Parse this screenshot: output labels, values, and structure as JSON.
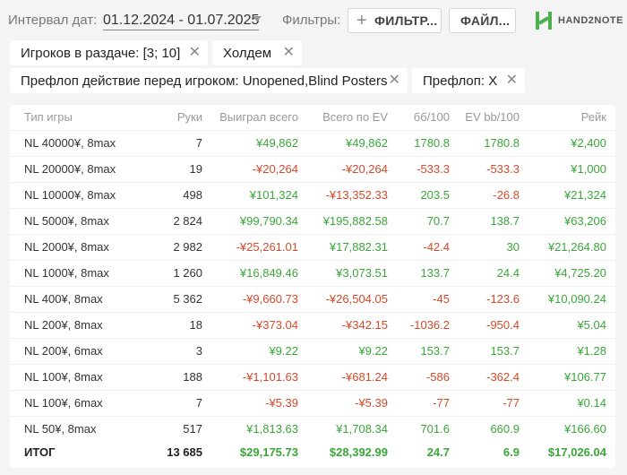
{
  "topbar": {
    "interval_label": "Интервал дат:",
    "interval_value": "01.12.2024 - 01.07.2025",
    "filters_label": "Фильтры:",
    "filter_button": "ФИЛЬТР...",
    "file_button": "ФАЙЛ...",
    "logo_text": "HAND2NOTE"
  },
  "chips": [
    {
      "label": "Игроков в раздаче: [3; 10]"
    },
    {
      "label": "Холдем"
    },
    {
      "label": "Префлоп действие перед игроком: Unopened,Blind Posters"
    },
    {
      "label": "Префлоп: X"
    }
  ],
  "table": {
    "headers": [
      "Тип игры",
      "Руки",
      "Выиграл всего",
      "Всего по EV",
      "бб/100",
      "EV bb/100",
      "Рейк"
    ],
    "rows": [
      [
        "NL 40000¥, 8max",
        "7",
        "¥49,862",
        "¥49,862",
        "1780.8",
        "1780.8",
        "¥2,400"
      ],
      [
        "NL 20000¥, 8max",
        "19",
        "-¥20,264",
        "-¥20,264",
        "-533.3",
        "-533.3",
        "¥1,000"
      ],
      [
        "NL 10000¥, 8max",
        "498",
        "¥101,324",
        "-¥13,352.33",
        "203.5",
        "-26.8",
        "¥21,324"
      ],
      [
        "NL 5000¥, 8max",
        "2 824",
        "¥99,790.34",
        "¥195,882.58",
        "70.7",
        "138.7",
        "¥63,206"
      ],
      [
        "NL 2000¥, 8max",
        "2 982",
        "-¥25,261.01",
        "¥17,882.31",
        "-42.4",
        "30",
        "¥21,264.80"
      ],
      [
        "NL 1000¥, 8max",
        "1 260",
        "¥16,849.46",
        "¥3,073.51",
        "133.7",
        "24.4",
        "¥4,725.20"
      ],
      [
        "NL 400¥, 8max",
        "5 362",
        "-¥9,660.73",
        "-¥26,504.05",
        "-45",
        "-123.6",
        "¥10,090.24"
      ],
      [
        "NL 200¥, 8max",
        "18",
        "-¥373.04",
        "-¥342.15",
        "-1036.2",
        "-950.4",
        "¥5.04"
      ],
      [
        "NL 200¥, 6max",
        "3",
        "¥9.22",
        "¥9.22",
        "153.7",
        "153.7",
        "¥1.28"
      ],
      [
        "NL 100¥, 8max",
        "188",
        "-¥1,101.63",
        "-¥681.24",
        "-586",
        "-362.4",
        "¥106.77"
      ],
      [
        "NL 100¥, 6max",
        "7",
        "-¥5.39",
        "-¥5.39",
        "-77",
        "-77",
        "¥0.14"
      ],
      [
        "NL 50¥, 8max",
        "517",
        "¥1,813.63",
        "¥1,708.34",
        "701.6",
        "660.9",
        "¥166.60"
      ]
    ],
    "total": [
      "ИТОГ",
      "13 685",
      "$29,175.73",
      "$28,392.99",
      "24.7",
      "6.9",
      "$17,026.04"
    ]
  },
  "colors": {
    "positive": "#3aa63a",
    "negative": "#d34a2a",
    "logo_green": "#4caf50"
  },
  "icons": {
    "filter_add": "plus-icon",
    "chip_remove": "close-icon",
    "interval_dropdown": "caret-down-icon",
    "logo": "hand2note-logo-icon"
  }
}
